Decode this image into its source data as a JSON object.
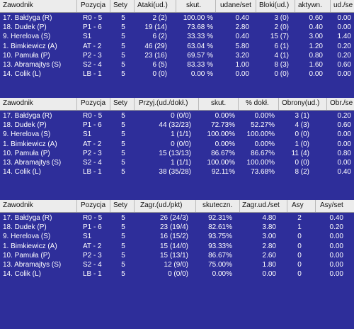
{
  "tables": [
    {
      "headers": [
        "Zawodnik",
        "Pozycja",
        "Sety",
        "Ataki(ud.)",
        "skut.",
        "udane/set",
        "Bloki(ud.)",
        "aktywn.",
        "ud./se"
      ],
      "rows": [
        [
          "17. Bałdyga (R)",
          "R0 - 5",
          "5",
          "2 (2)",
          "100.00 %",
          "0.40",
          "3 (0)",
          "0.60",
          "0.00"
        ],
        [
          "18. Dudek (P)",
          "P1 - 6",
          "5",
          "19 (14)",
          "73.68 %",
          "2.80",
          "2 (0)",
          "0.40",
          "0.00"
        ],
        [
          "9. Herelova (S)",
          "S1",
          "5",
          "6 (2)",
          "33.33 %",
          "0.40",
          "15 (7)",
          "3.00",
          "1.40"
        ],
        [
          "1. Bimkiewicz (A)",
          "AT - 2",
          "5",
          "46 (29)",
          "63.04 %",
          "5.80",
          "6 (1)",
          "1.20",
          "0.20"
        ],
        [
          "10. Pamuła (P)",
          "P2 - 3",
          "5",
          "23 (16)",
          "69.57 %",
          "3.20",
          "4 (1)",
          "0.80",
          "0.20"
        ],
        [
          "13. Abramajtys (S)",
          "S2 - 4",
          "5",
          "6 (5)",
          "83.33 %",
          "1.00",
          "8 (3)",
          "1.60",
          "0.60"
        ],
        [
          "14. Colik (L)",
          "LB - 1",
          "5",
          "0 (0)",
          "0.00 %",
          "0.00",
          "0 (0)",
          "0.00",
          "0.00"
        ]
      ]
    },
    {
      "headers": [
        "Zawodnik",
        "Pozycja",
        "Sety",
        "Przyj.(ud./dokł.)",
        "skut.",
        "% dokł.",
        "Obrony(ud.)",
        "Obr./se"
      ],
      "rows": [
        [
          "17. Bałdyga (R)",
          "R0 - 5",
          "5",
          "0 (0/0)",
          "0.00%",
          "0.00%",
          "3 (1)",
          "0.20"
        ],
        [
          "18. Dudek (P)",
          "P1 - 6",
          "5",
          "44 (32/23)",
          "72.73%",
          "52.27%",
          "4 (3)",
          "0.60"
        ],
        [
          "9. Herelova (S)",
          "S1",
          "5",
          "1 (1/1)",
          "100.00%",
          "100.00%",
          "0 (0)",
          "0.00"
        ],
        [
          "1. Bimkiewicz (A)",
          "AT - 2",
          "5",
          "0 (0/0)",
          "0.00%",
          "0.00%",
          "1 (0)",
          "0.00"
        ],
        [
          "10. Pamuła (P)",
          "P2 - 3",
          "5",
          "15 (13/13)",
          "86.67%",
          "86.67%",
          "11 (4)",
          "0.80"
        ],
        [
          "13. Abramajtys (S)",
          "S2 - 4",
          "5",
          "1 (1/1)",
          "100.00%",
          "100.00%",
          "0 (0)",
          "0.00"
        ],
        [
          "14. Colik (L)",
          "LB - 1",
          "5",
          "38 (35/28)",
          "92.11%",
          "73.68%",
          "8 (2)",
          "0.40"
        ]
      ]
    },
    {
      "headers": [
        "Zawodnik",
        "Pozycja",
        "Sety",
        "Zagr.(ud./pkt)",
        "skuteczn.",
        "Zagr.ud./set",
        "Asy",
        "Asy/set"
      ],
      "rows": [
        [
          "17. Bałdyga (R)",
          "R0 - 5",
          "5",
          "26 (24/3)",
          "92.31%",
          "4.80",
          "2",
          "0.40"
        ],
        [
          "18. Dudek (P)",
          "P1 - 6",
          "5",
          "23 (19/4)",
          "82.61%",
          "3.80",
          "1",
          "0.20"
        ],
        [
          "9. Herelova (S)",
          "S1",
          "5",
          "16 (15/2)",
          "93.75%",
          "3.00",
          "0",
          "0.00"
        ],
        [
          "1. Bimkiewicz (A)",
          "AT - 2",
          "5",
          "15 (14/0)",
          "93.33%",
          "2.80",
          "0",
          "0.00"
        ],
        [
          "10. Pamuła (P)",
          "P2 - 3",
          "5",
          "15 (13/1)",
          "86.67%",
          "2.60",
          "0",
          "0.00"
        ],
        [
          "13. Abramajtys (S)",
          "S2 - 4",
          "5",
          "12 (9/0)",
          "75.00%",
          "1.80",
          "0",
          "0.00"
        ],
        [
          "14. Colik (L)",
          "LB - 1",
          "5",
          "0 (0/0)",
          "0.00%",
          "0.00",
          "0",
          "0.00"
        ]
      ]
    }
  ]
}
